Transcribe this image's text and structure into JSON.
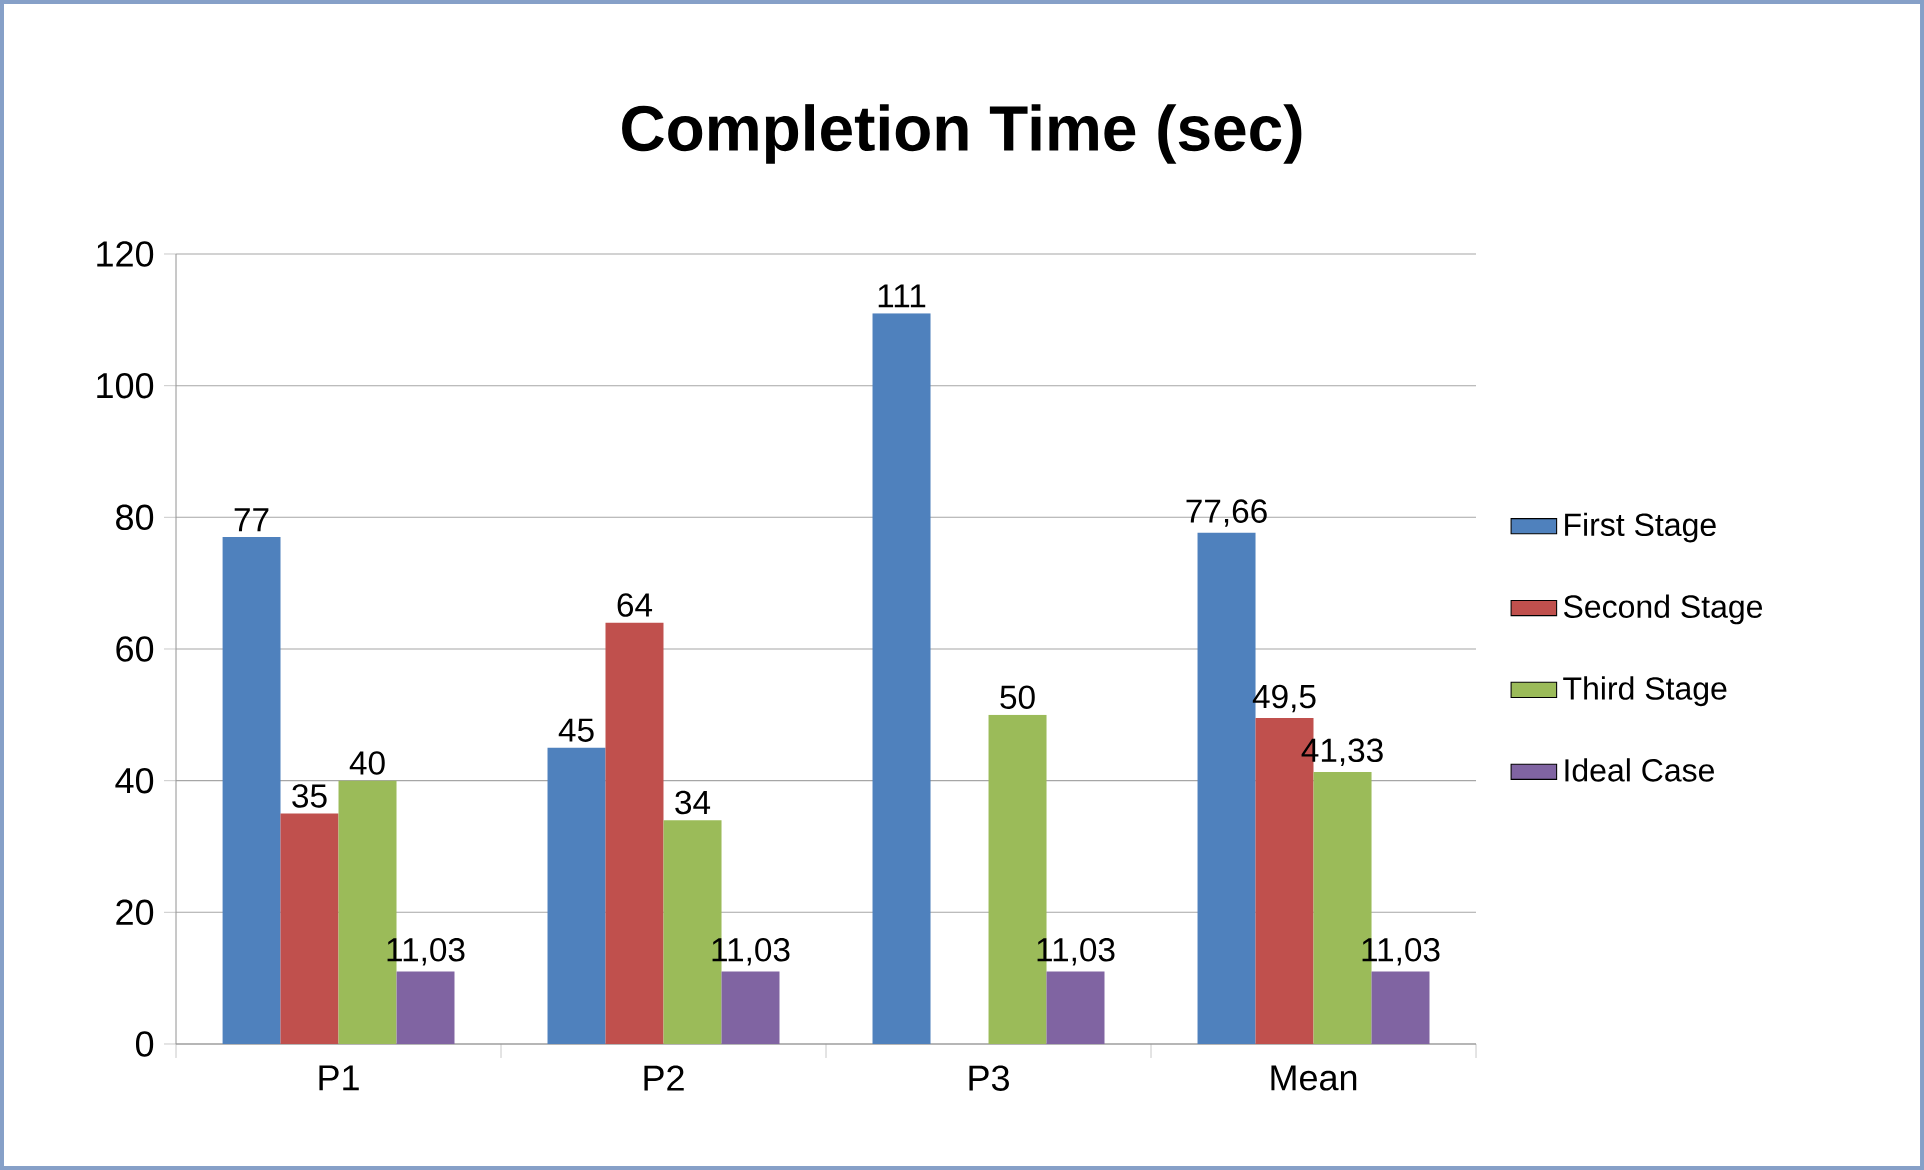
{
  "chart_data": {
    "type": "bar",
    "title": "Completion Time (sec)",
    "categories": [
      "P1",
      "P2",
      "P3",
      "Mean"
    ],
    "series": [
      {
        "name": "First Stage",
        "color": "#4f81bd",
        "values": [
          77,
          45,
          111,
          77.66
        ],
        "value_labels": [
          "77",
          "45",
          "111",
          "77,66"
        ]
      },
      {
        "name": "Second Stage",
        "color": "#c0504d",
        "values": [
          35,
          64,
          null,
          49.5
        ],
        "value_labels": [
          "35",
          "64",
          null,
          "49,5"
        ]
      },
      {
        "name": "Third Stage",
        "color": "#9bbb59",
        "values": [
          40,
          34,
          50,
          41.33
        ],
        "value_labels": [
          "40",
          "34",
          "50",
          "41,33"
        ]
      },
      {
        "name": "Ideal Case",
        "color": "#8064a2",
        "values": [
          11.03,
          11.03,
          11.03,
          11.03
        ],
        "value_labels": [
          "11,03",
          "11,03",
          "11,03",
          "11,03"
        ]
      }
    ],
    "ylim": [
      0,
      120
    ],
    "yticks": [
      0,
      20,
      40,
      60,
      80,
      100,
      120
    ],
    "grid": "y",
    "legend": "right"
  }
}
